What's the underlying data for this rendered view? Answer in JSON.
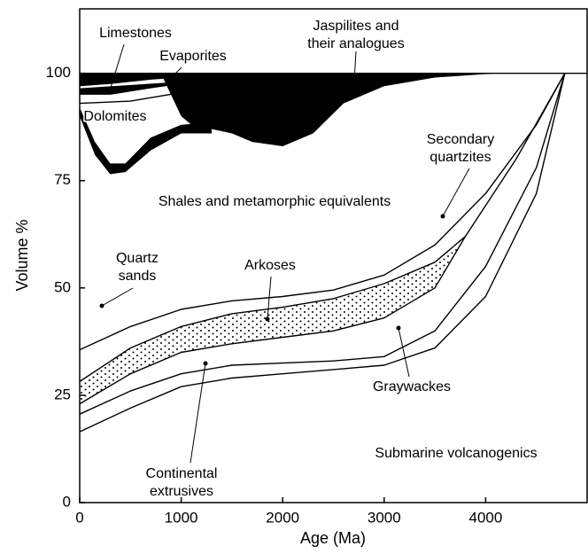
{
  "chart_data": {
    "type": "line",
    "x_label": "Age (Ma)",
    "y_label": "Volume %",
    "xlim": [
      0,
      5000
    ],
    "ylim": [
      0,
      115
    ],
    "xticks": [
      0,
      1000,
      2000,
      3000,
      4000
    ],
    "yticks": [
      0,
      25,
      50,
      75,
      100
    ],
    "series": [
      {
        "color": "#000000",
        "fill": "solid",
        "x": [
          0,
          1600,
          700,
          300,
          0
        ],
        "values": [
          100,
          100,
          98.5,
          97.5,
          97
        ]
      },
      {
        "color": "#000000",
        "fill": "solid",
        "x": [
          0,
          1300,
          700,
          300,
          0
        ],
        "values": [
          96.5,
          98.5,
          96.5,
          95,
          95
        ]
      },
      {
        "color": "#000000",
        "fill": "solid",
        "x": [
          800,
          4100,
          3500,
          3000,
          2600,
          2300,
          2000,
          1700,
          1500,
          1300,
          1100,
          1000,
          900
        ],
        "values": [
          100,
          100,
          99,
          97,
          93,
          86,
          83,
          84,
          86,
          87,
          88,
          90,
          95
        ]
      },
      {
        "color": "#000000",
        "fill": "solid",
        "x": [
          0,
          150,
          300,
          450,
          700,
          1000,
          1300,
          1300,
          1000,
          700,
          450,
          300,
          150,
          0
        ],
        "values": [
          92,
          84,
          79,
          79,
          85,
          88,
          88.5,
          86,
          86,
          82,
          77,
          76.5,
          81,
          90
        ]
      },
      {
        "color": "#000000",
        "fill": "dots",
        "x": [
          0,
          500,
          1000,
          1500,
          2000,
          2500,
          3000,
          3500,
          3800,
          3500,
          3000,
          2500,
          2000,
          1500,
          1000,
          500,
          0
        ],
        "values": [
          28.2,
          36,
          41,
          44,
          45.5,
          47.5,
          51,
          56,
          62,
          50,
          43,
          40,
          38.5,
          37,
          35,
          30,
          23
        ]
      },
      {
        "color": "#000000",
        "x": [
          0,
          500,
          1000,
          1500
        ],
        "values": [
          93,
          93.5,
          95.5,
          97.5
        ]
      },
      {
        "color": "#000000",
        "x": [
          0,
          500,
          1000,
          1500,
          2000,
          2500,
          3000,
          3500,
          4000,
          4500,
          4780
        ],
        "values": [
          16.5,
          22,
          27,
          29,
          30,
          31,
          32,
          36,
          48,
          72,
          100
        ]
      },
      {
        "color": "#000000",
        "x": [
          0,
          500,
          1000,
          1500,
          2000,
          2500,
          3000,
          3500,
          4000,
          4500,
          4780
        ],
        "values": [
          20.6,
          26,
          30,
          32,
          32.5,
          33,
          34,
          40,
          55,
          78,
          100
        ]
      },
      {
        "color": "#000000",
        "x": [
          0,
          500,
          1000,
          1500,
          2000,
          2500,
          3000,
          3500,
          3800
        ],
        "values": [
          23,
          30,
          35,
          37,
          38.5,
          40,
          43,
          50,
          62
        ]
      },
      {
        "color": "#000000",
        "x": [
          0,
          500,
          1000,
          1500,
          2000,
          2500,
          3000,
          3500,
          3800
        ],
        "values": [
          28.2,
          36,
          41,
          44,
          45.5,
          47.5,
          51,
          56,
          62
        ]
      },
      {
        "color": "#000000",
        "x": [
          0,
          500,
          1000,
          1500,
          2000,
          2500,
          3000,
          3500,
          4000,
          4500,
          4780
        ],
        "values": [
          35.6,
          41,
          45,
          47,
          48,
          49.5,
          53,
          60,
          72,
          88,
          100
        ]
      },
      {
        "color": "#000000",
        "x": [
          3800,
          4300,
          4780
        ],
        "values": [
          62,
          80,
          100
        ]
      },
      {
        "color": "#000000",
        "x": [
          0,
          5000
        ],
        "values": [
          100,
          100
        ]
      }
    ],
    "annotations": [
      {
        "text": [
          "Limestones"
        ]
      },
      {
        "text": [
          "Evaporites"
        ]
      },
      {
        "text": [
          "Jaspilites and",
          "their analogues"
        ]
      },
      {
        "text": [
          "Dolomites"
        ]
      },
      {
        "text": [
          "Shales and metamorphic equivalents"
        ]
      },
      {
        "text": [
          "Secondary",
          "quartzites"
        ]
      },
      {
        "text": [
          "Quartz",
          "sands"
        ]
      },
      {
        "text": [
          "Arkoses"
        ]
      },
      {
        "text": [
          "Continental",
          "extrusives"
        ]
      },
      {
        "text": [
          "Graywackes"
        ]
      },
      {
        "text": [
          "Submarine volcanogenics"
        ]
      }
    ]
  }
}
